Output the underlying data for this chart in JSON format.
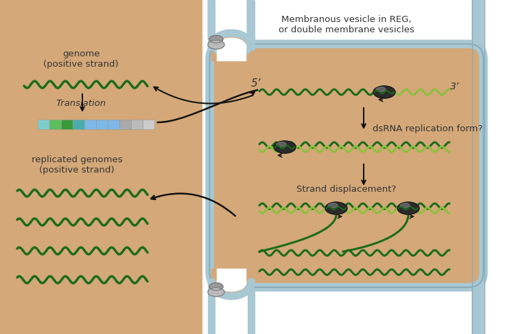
{
  "bg_tan": "#D4A878",
  "bg_white": "#FFFFFF",
  "membrane_color": "#A8C8D4",
  "membrane_edge": "#8AABB8",
  "dark_green": "#1A6B1A",
  "light_green": "#8DC040",
  "text_color": "#333333",
  "title_text": "Membranous vesicle in REG,\nor double membrane vesicles",
  "genome_label": "genome\n(positive strand)",
  "translation_label": "Translation",
  "replicated_label": "replicated genomes\n(positive strand)",
  "dsrna_label": "dsRNA replication form?",
  "strand_disp_label": "Strand displacement?",
  "five_prime": "5’",
  "three_prime": "3’",
  "block_colors": [
    "#7ECECE",
    "#5BBF5B",
    "#3A9A3A",
    "#4AADAD",
    "#7EB8E8",
    "#7EB8E8",
    "#7EB8E8",
    "#AAAAAA",
    "#BBBBBB",
    "#CCCCCC"
  ],
  "ribosome_color": "#AAAAAA",
  "poly_dark": "#2a2a2a",
  "poly_mid": "#777777"
}
